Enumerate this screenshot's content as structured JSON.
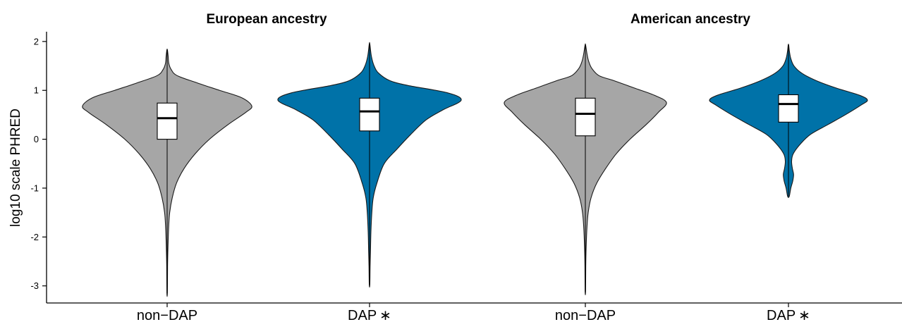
{
  "chart_data": {
    "type": "violin",
    "ylabel": "log10 scale PHRED",
    "ylim": [
      -3.35,
      2.2
    ],
    "yticks": [
      -3,
      -2,
      -1,
      0,
      1,
      2
    ],
    "yticklabels": [
      "-3",
      "-2",
      "-1",
      "0",
      "1",
      "2"
    ],
    "grid": false,
    "legend": "none",
    "panels": [
      {
        "title": "European ancestry",
        "groups": [
          {
            "label": "non−DAP",
            "color": "#a6a6a6",
            "min": -3.15,
            "max": 1.83,
            "q1": 0.0,
            "median": 0.43,
            "q3": 0.74,
            "density": [
              [
                -3.15,
                0.003
              ],
              [
                -2.6,
                0.005
              ],
              [
                -2.2,
                0.01
              ],
              [
                -1.8,
                0.018
              ],
              [
                -1.5,
                0.03
              ],
              [
                -1.2,
                0.06
              ],
              [
                -0.9,
                0.11
              ],
              [
                -0.6,
                0.2
              ],
              [
                -0.3,
                0.33
              ],
              [
                0.0,
                0.5
              ],
              [
                0.3,
                0.72
              ],
              [
                0.55,
                0.93
              ],
              [
                0.68,
                1.0
              ],
              [
                0.85,
                0.88
              ],
              [
                1.0,
                0.62
              ],
              [
                1.15,
                0.36
              ],
              [
                1.3,
                0.12
              ],
              [
                1.42,
                0.05
              ],
              [
                1.55,
                0.02
              ],
              [
                1.7,
                0.012
              ],
              [
                1.83,
                0.003
              ]
            ]
          },
          {
            "label": "DAP ∗",
            "color": "#0072a8",
            "min": -2.98,
            "max": 1.95,
            "q1": 0.17,
            "median": 0.57,
            "q3": 0.84,
            "density": [
              [
                -2.98,
                0.003
              ],
              [
                -2.6,
                0.006
              ],
              [
                -2.3,
                0.01
              ],
              [
                -1.9,
                0.015
              ],
              [
                -1.5,
                0.025
              ],
              [
                -1.2,
                0.04
              ],
              [
                -0.9,
                0.08
              ],
              [
                -0.5,
                0.16
              ],
              [
                -0.2,
                0.3
              ],
              [
                0.1,
                0.45
              ],
              [
                0.4,
                0.62
              ],
              [
                0.6,
                0.8
              ],
              [
                0.8,
                1.0
              ],
              [
                0.95,
                0.85
              ],
              [
                1.1,
                0.42
              ],
              [
                1.2,
                0.22
              ],
              [
                1.35,
                0.1
              ],
              [
                1.5,
                0.05
              ],
              [
                1.7,
                0.02
              ],
              [
                1.95,
                0.003
              ]
            ]
          }
        ]
      },
      {
        "title": "American ancestry",
        "groups": [
          {
            "label": "non−DAP",
            "color": "#a6a6a6",
            "min": -3.12,
            "max": 1.93,
            "q1": 0.07,
            "median": 0.52,
            "q3": 0.84,
            "density": [
              [
                -3.12,
                0.003
              ],
              [
                -2.6,
                0.005
              ],
              [
                -2.2,
                0.01
              ],
              [
                -1.8,
                0.02
              ],
              [
                -1.5,
                0.035
              ],
              [
                -1.2,
                0.07
              ],
              [
                -0.9,
                0.14
              ],
              [
                -0.6,
                0.25
              ],
              [
                -0.3,
                0.38
              ],
              [
                0.0,
                0.55
              ],
              [
                0.3,
                0.75
              ],
              [
                0.55,
                0.9
              ],
              [
                0.75,
                1.0
              ],
              [
                0.9,
                0.85
              ],
              [
                1.05,
                0.6
              ],
              [
                1.2,
                0.35
              ],
              [
                1.3,
                0.17
              ],
              [
                1.45,
                0.08
              ],
              [
                1.6,
                0.04
              ],
              [
                1.75,
                0.02
              ],
              [
                1.93,
                0.003
              ]
            ]
          },
          {
            "label": "DAP ∗",
            "color": "#0072a8",
            "min": -1.17,
            "max": 1.93,
            "q1": 0.35,
            "median": 0.72,
            "q3": 0.91,
            "density": [
              [
                -1.17,
                0.01
              ],
              [
                -1.0,
                0.03
              ],
              [
                -0.85,
                0.055
              ],
              [
                -0.72,
                0.065
              ],
              [
                -0.6,
                0.05
              ],
              [
                -0.45,
                0.04
              ],
              [
                -0.3,
                0.06
              ],
              [
                -0.1,
                0.15
              ],
              [
                0.1,
                0.28
              ],
              [
                0.3,
                0.5
              ],
              [
                0.5,
                0.72
              ],
              [
                0.7,
                0.92
              ],
              [
                0.8,
                1.0
              ],
              [
                0.9,
                0.9
              ],
              [
                1.05,
                0.6
              ],
              [
                1.2,
                0.35
              ],
              [
                1.35,
                0.17
              ],
              [
                1.5,
                0.07
              ],
              [
                1.65,
                0.03
              ],
              [
                1.8,
                0.012
              ],
              [
                1.93,
                0.003
              ]
            ]
          }
        ]
      }
    ]
  }
}
